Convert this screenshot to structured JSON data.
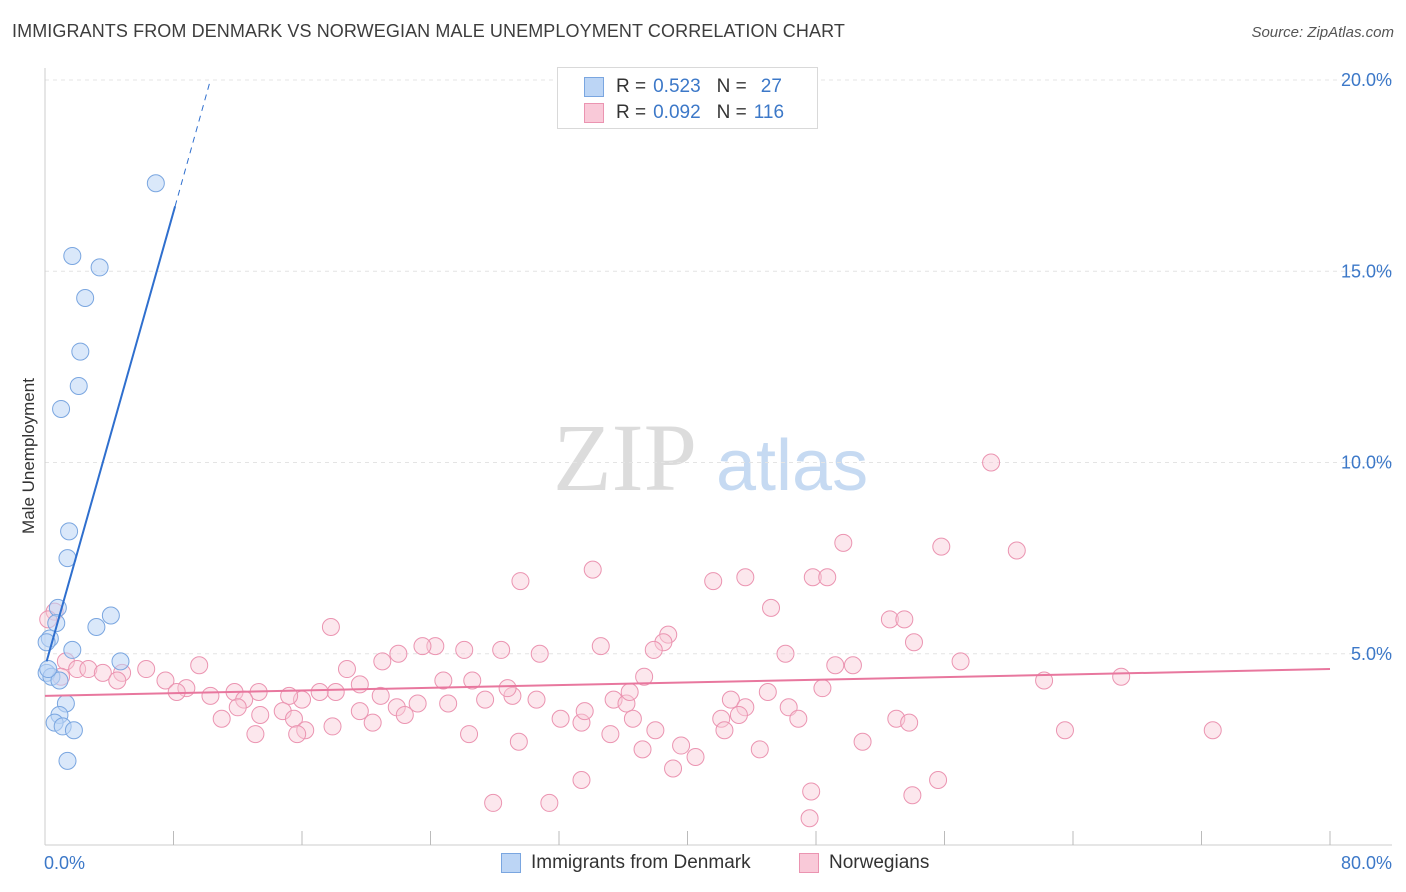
{
  "title": "IMMIGRANTS FROM DENMARK VS NORWEGIAN MALE UNEMPLOYMENT CORRELATION CHART",
  "source": "Source: ZipAtlas.com",
  "watermark": {
    "part1": "ZIP",
    "part2": "atlas"
  },
  "legend": {
    "series1": {
      "r_label": "R =",
      "r_value": "0.523",
      "n_label": "N =",
      "n_value": "27"
    },
    "series2": {
      "r_label": "R =",
      "r_value": "0.092",
      "n_label": "N =",
      "n_value": "116"
    }
  },
  "bottom_legend": {
    "series1": "Immigrants from Denmark",
    "series2": "Norwegians"
  },
  "colors": {
    "blue_fill": "#bcd5f5",
    "blue_stroke": "#7aa6e0",
    "blue_line": "#2f6fce",
    "pink_fill": "#f9c9d8",
    "pink_stroke": "#eb94b1",
    "pink_line": "#e8779e",
    "grid": "#e4e4e4",
    "axis_text": "#3c78c8"
  },
  "chart_data": {
    "type": "scatter",
    "title": "IMMIGRANTS FROM DENMARK VS NORWEGIAN MALE UNEMPLOYMENT CORRELATION CHART",
    "xlabel": "",
    "ylabel": "Male Unemployment",
    "xlim": [
      0,
      80
    ],
    "ylim": [
      0,
      20
    ],
    "x_tick_labels": {
      "min": "0.0%",
      "max": "80.0%"
    },
    "y_ticks": [
      {
        "value": 5,
        "label": "5.0%"
      },
      {
        "value": 10,
        "label": "10.0%"
      },
      {
        "value": 15,
        "label": "15.0%"
      },
      {
        "value": 20,
        "label": "20.0%"
      }
    ],
    "x_minor_ticks": [
      8,
      16,
      24,
      32,
      40,
      48,
      56,
      64,
      72,
      80
    ],
    "grid": true,
    "series": [
      {
        "name": "Immigrants from Denmark",
        "r": 0.523,
        "n": 27,
        "trendline": {
          "x0": 0.1,
          "y0": 4.8,
          "x1": 8.1,
          "y1": 16.7,
          "dash_to_x": 10.3,
          "dash_to_y": 20.0
        },
        "points": [
          [
            6.9,
            17.3
          ],
          [
            1.7,
            15.4
          ],
          [
            3.4,
            15.1
          ],
          [
            2.5,
            14.3
          ],
          [
            2.2,
            12.9
          ],
          [
            2.1,
            12.0
          ],
          [
            1.0,
            11.4
          ],
          [
            1.5,
            8.2
          ],
          [
            1.4,
            7.5
          ],
          [
            4.1,
            6.0
          ],
          [
            0.8,
            6.2
          ],
          [
            0.7,
            5.8
          ],
          [
            3.2,
            5.7
          ],
          [
            0.3,
            5.4
          ],
          [
            0.1,
            5.3
          ],
          [
            1.7,
            5.1
          ],
          [
            4.7,
            4.8
          ],
          [
            0.1,
            4.5
          ],
          [
            0.4,
            4.4
          ],
          [
            0.9,
            4.3
          ],
          [
            1.3,
            3.7
          ],
          [
            0.9,
            3.4
          ],
          [
            0.6,
            3.2
          ],
          [
            1.1,
            3.1
          ],
          [
            1.8,
            3.0
          ],
          [
            1.4,
            2.2
          ],
          [
            0.2,
            4.6
          ]
        ]
      },
      {
        "name": "Norwegians",
        "r": 0.092,
        "n": 116,
        "trendline": {
          "x0": 0.0,
          "y0": 3.9,
          "x1": 80.0,
          "y1": 4.6
        },
        "points": [
          [
            58.9,
            10.0
          ],
          [
            49.7,
            7.9
          ],
          [
            55.8,
            7.8
          ],
          [
            60.5,
            7.7
          ],
          [
            34.1,
            7.2
          ],
          [
            29.6,
            6.9
          ],
          [
            41.6,
            6.9
          ],
          [
            43.6,
            7.0
          ],
          [
            47.8,
            7.0
          ],
          [
            48.7,
            7.0
          ],
          [
            45.2,
            6.2
          ],
          [
            52.6,
            5.9
          ],
          [
            53.5,
            5.9
          ],
          [
            0.6,
            6.1
          ],
          [
            17.8,
            5.7
          ],
          [
            38.8,
            5.5
          ],
          [
            54.1,
            5.3
          ],
          [
            24.3,
            5.2
          ],
          [
            22.0,
            5.0
          ],
          [
            34.6,
            5.2
          ],
          [
            38.5,
            5.3
          ],
          [
            21.0,
            4.8
          ],
          [
            26.1,
            5.1
          ],
          [
            28.4,
            5.1
          ],
          [
            30.8,
            5.0
          ],
          [
            37.9,
            5.1
          ],
          [
            46.1,
            5.0
          ],
          [
            23.5,
            5.2
          ],
          [
            57.0,
            4.8
          ],
          [
            1.3,
            4.8
          ],
          [
            2.0,
            4.6
          ],
          [
            2.7,
            4.6
          ],
          [
            3.6,
            4.5
          ],
          [
            4.8,
            4.5
          ],
          [
            6.3,
            4.6
          ],
          [
            7.5,
            4.3
          ],
          [
            9.6,
            4.7
          ],
          [
            11.8,
            4.0
          ],
          [
            18.8,
            4.6
          ],
          [
            19.6,
            4.2
          ],
          [
            18.1,
            4.0
          ],
          [
            26.6,
            4.3
          ],
          [
            37.3,
            4.4
          ],
          [
            50.3,
            4.7
          ],
          [
            49.2,
            4.7
          ],
          [
            48.4,
            4.1
          ],
          [
            62.2,
            4.3
          ],
          [
            67.0,
            4.4
          ],
          [
            1.0,
            4.4
          ],
          [
            0.2,
            5.9
          ],
          [
            4.5,
            4.3
          ],
          [
            8.8,
            4.1
          ],
          [
            13.3,
            4.0
          ],
          [
            17.1,
            4.0
          ],
          [
            8.2,
            4.0
          ],
          [
            10.3,
            3.9
          ],
          [
            12.4,
            3.8
          ],
          [
            16.0,
            3.8
          ],
          [
            15.2,
            3.9
          ],
          [
            21.9,
            3.6
          ],
          [
            20.9,
            3.9
          ],
          [
            23.2,
            3.7
          ],
          [
            25.1,
            3.7
          ],
          [
            27.4,
            3.8
          ],
          [
            29.1,
            3.9
          ],
          [
            30.6,
            3.8
          ],
          [
            35.4,
            3.8
          ],
          [
            36.2,
            3.7
          ],
          [
            42.7,
            3.8
          ],
          [
            43.6,
            3.6
          ],
          [
            46.3,
            3.6
          ],
          [
            11.0,
            3.3
          ],
          [
            12.0,
            3.6
          ],
          [
            13.4,
            3.4
          ],
          [
            14.8,
            3.5
          ],
          [
            15.5,
            3.3
          ],
          [
            17.9,
            3.1
          ],
          [
            19.6,
            3.5
          ],
          [
            20.4,
            3.2
          ],
          [
            32.1,
            3.3
          ],
          [
            33.4,
            3.2
          ],
          [
            36.6,
            3.3
          ],
          [
            42.1,
            3.3
          ],
          [
            43.2,
            3.4
          ],
          [
            46.9,
            3.3
          ],
          [
            53.0,
            3.3
          ],
          [
            16.2,
            3.0
          ],
          [
            15.7,
            2.9
          ],
          [
            13.1,
            2.9
          ],
          [
            22.4,
            3.4
          ],
          [
            26.4,
            2.9
          ],
          [
            33.6,
            3.5
          ],
          [
            29.5,
            2.7
          ],
          [
            35.2,
            2.9
          ],
          [
            37.2,
            2.5
          ],
          [
            39.6,
            2.6
          ],
          [
            42.3,
            3.0
          ],
          [
            44.5,
            2.5
          ],
          [
            50.9,
            2.7
          ],
          [
            63.5,
            3.0
          ],
          [
            72.7,
            3.0
          ],
          [
            33.4,
            1.7
          ],
          [
            39.1,
            2.0
          ],
          [
            31.4,
            1.1
          ],
          [
            27.9,
            1.1
          ],
          [
            47.7,
            1.4
          ],
          [
            54.0,
            1.3
          ],
          [
            55.6,
            1.7
          ],
          [
            47.6,
            0.7
          ],
          [
            38.0,
            3.0
          ],
          [
            24.8,
            4.3
          ],
          [
            28.8,
            4.1
          ],
          [
            36.4,
            4.0
          ],
          [
            45.0,
            4.0
          ],
          [
            53.8,
            3.2
          ],
          [
            40.5,
            2.3
          ]
        ]
      }
    ]
  }
}
